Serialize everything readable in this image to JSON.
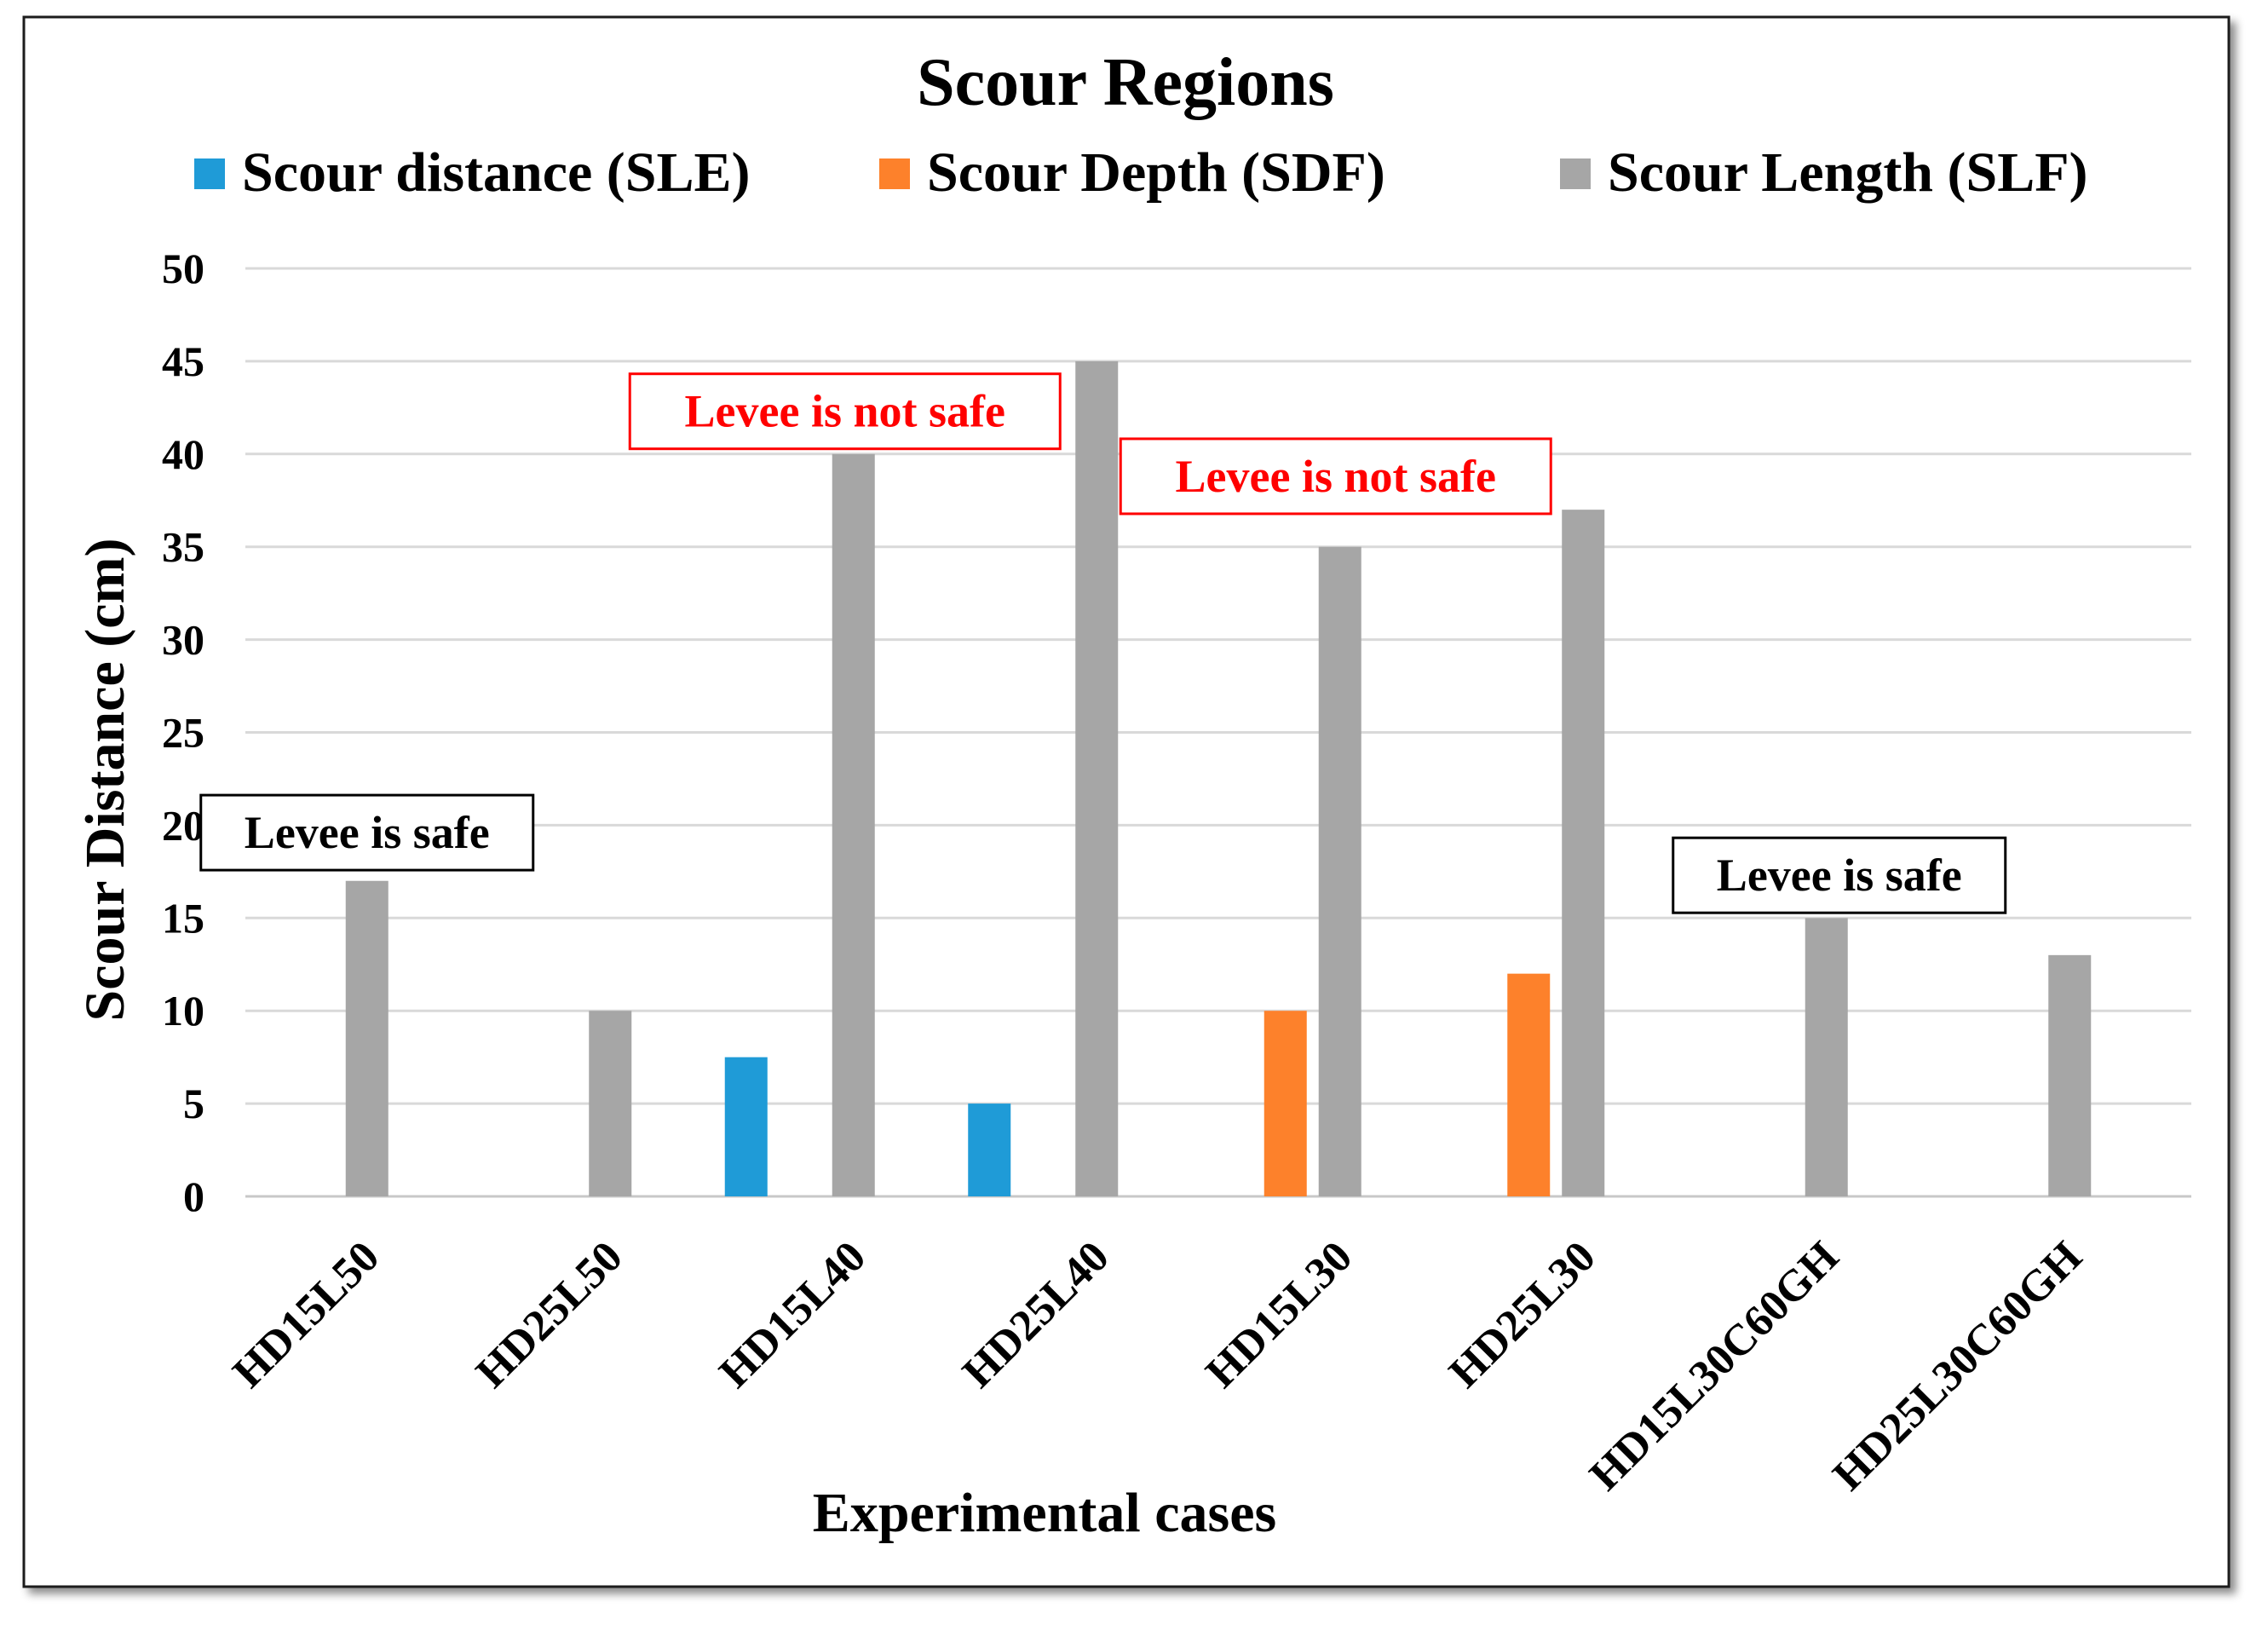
{
  "chart_data": {
    "type": "bar",
    "title": "Scour Regions",
    "xlabel": "Experimental cases",
    "ylabel": "Scour Distance (cm)",
    "ylim": [
      0,
      50
    ],
    "ytick_step": 5,
    "grid": true,
    "legend_position": "top",
    "categories": [
      "HD15L50",
      "HD25L50",
      "HD15L40",
      "HD25L40",
      "HD15L30",
      "HD25L30",
      "HD15L30C60GH",
      "HD25L30C60GH"
    ],
    "series": [
      {
        "name": "Scour distance (SLE)",
        "color": "#1f9bd7",
        "values": [
          0,
          0,
          7.5,
          5,
          0,
          0,
          0,
          0
        ]
      },
      {
        "name": "Scour Depth (SDF)",
        "color": "#fd812b",
        "values": [
          0,
          0,
          0,
          0,
          10,
          12,
          0,
          0
        ]
      },
      {
        "name": "Scour Length (SLF)",
        "color": "#a6a6a6",
        "values": [
          17,
          10,
          40,
          45,
          35,
          37,
          15,
          13
        ]
      }
    ],
    "annotations": [
      {
        "text": "Levee is safe",
        "color": "#000000",
        "near_category": "HD15L50",
        "value": 19.6
      },
      {
        "text": "Levee is not safe",
        "color": "#ff0000",
        "near_category": "HD15L40",
        "value": 42.3
      },
      {
        "text": "Levee is not safe",
        "color": "#ff0000",
        "near_category": "HD15L30",
        "value": 38.8
      },
      {
        "text": "Levee is safe",
        "color": "#000000",
        "near_category": "HD15L30C60GH",
        "value": 17.3
      }
    ]
  }
}
